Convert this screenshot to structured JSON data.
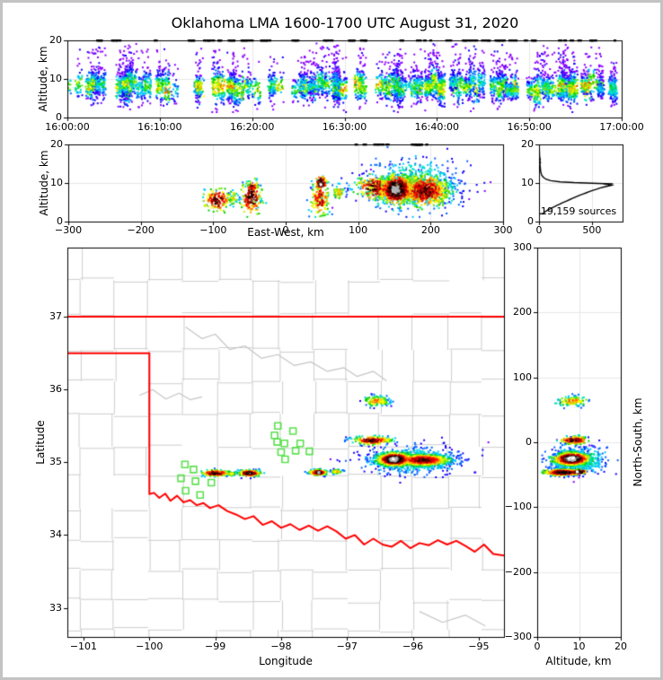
{
  "title": "Oklahoma LMA 1600-1700 UTC August 31, 2020",
  "colors": {
    "background": "#ffffff",
    "frame": "#c3c3c3",
    "spine": "#000000",
    "grid": "#e8e8e8",
    "county": "#cecece",
    "river": "#c6c6c6",
    "state_border": "#ff0000",
    "station": "#5ce14f",
    "histogram_line": "#000000",
    "density_palette": [
      "#8b00ff",
      "#1400ff",
      "#0064ff",
      "#00c8ff",
      "#00e6b4",
      "#00d200",
      "#64e600",
      "#c8f000",
      "#ffff00",
      "#ffb400",
      "#ff6400",
      "#ff0000",
      "#c80000",
      "#820000",
      "#3c0000",
      "#000000",
      "#646464",
      "#b4b4b4",
      "#ffffff"
    ]
  },
  "chart_data": {
    "type": "scatter",
    "panels": {
      "time_height": {
        "ylabel": "Altitude, km",
        "xlim": [
          0,
          3600
        ],
        "ylim": [
          0,
          20
        ],
        "xtick_vals": [
          0,
          600,
          1200,
          1800,
          2400,
          3000,
          3600
        ],
        "xtick_labels": [
          "16:00:00",
          "16:10:00",
          "16:20:00",
          "16:30:00",
          "16:40:00",
          "16:50:00",
          "17:00:00"
        ],
        "ytick_vals": [
          0,
          10,
          20
        ],
        "ytick_labels": [
          "0",
          "10",
          "20"
        ],
        "grid": true
      },
      "ew_height": {
        "xlabel": "East-West, km",
        "ylabel": "Altitude, km",
        "xlim": [
          -300,
          300
        ],
        "ylim": [
          0,
          20
        ],
        "xtick_vals": [
          -300,
          -200,
          -100,
          0,
          100,
          200,
          300
        ],
        "xtick_labels": [
          "−300",
          "−200",
          "−100",
          "0",
          "100",
          "200",
          "300"
        ],
        "ytick_vals": [
          0,
          10,
          20
        ],
        "ytick_labels": [
          "0",
          "10",
          "20"
        ],
        "grid": true
      },
      "histogram": {
        "xlim": [
          0,
          790
        ],
        "ylim": [
          0,
          20
        ],
        "xtick_vals": [
          0,
          500
        ],
        "xtick_labels": [
          "0",
          "500"
        ],
        "ytick_vals": [
          0,
          10,
          20
        ],
        "ytick_labels": [
          "0",
          "10",
          "20"
        ],
        "annotation": "19,159 sources",
        "grid": true,
        "profile_alt_count": [
          [
            20,
            2
          ],
          [
            19,
            3
          ],
          [
            18,
            4
          ],
          [
            17,
            5
          ],
          [
            16.5,
            7
          ],
          [
            16,
            12
          ],
          [
            15.7,
            6
          ],
          [
            15.3,
            14
          ],
          [
            15,
            8
          ],
          [
            14.5,
            10
          ],
          [
            14,
            12
          ],
          [
            13.5,
            13
          ],
          [
            13,
            16
          ],
          [
            12.5,
            20
          ],
          [
            12,
            26
          ],
          [
            11.5,
            40
          ],
          [
            11,
            65
          ],
          [
            10.6,
            110
          ],
          [
            10.3,
            200
          ],
          [
            10.1,
            330
          ],
          [
            9.9,
            560
          ],
          [
            9.8,
            700
          ],
          [
            9.6,
            640
          ],
          [
            9.4,
            685
          ],
          [
            9.2,
            655
          ],
          [
            9,
            620
          ],
          [
            8.7,
            575
          ],
          [
            8.4,
            545
          ],
          [
            8.1,
            510
          ],
          [
            7.8,
            480
          ],
          [
            7.5,
            450
          ],
          [
            7.2,
            420
          ],
          [
            6.9,
            390
          ],
          [
            6.6,
            365
          ],
          [
            6.3,
            340
          ],
          [
            6,
            315
          ],
          [
            5.7,
            290
          ],
          [
            5.4,
            265
          ],
          [
            5.1,
            240
          ],
          [
            4.8,
            215
          ],
          [
            4.5,
            195
          ],
          [
            4.2,
            170
          ],
          [
            3.9,
            150
          ],
          [
            3.6,
            125
          ],
          [
            3.3,
            105
          ],
          [
            3,
            85
          ],
          [
            2.7,
            65
          ],
          [
            2.4,
            50
          ],
          [
            2.1,
            40
          ],
          [
            2,
            10
          ],
          [
            1.9,
            2
          ]
        ]
      },
      "map": {
        "xlabel": "Longitude",
        "ylabel": "Latitude",
        "xlim": [
          -101.245,
          -94.617
        ],
        "ylim": [
          32.6,
          37.95
        ],
        "xtick_vals": [
          -101,
          -100,
          -99,
          -98,
          -97,
          -96,
          -95
        ],
        "xtick_labels": [
          "−101",
          "−100",
          "−99",
          "−98",
          "−97",
          "−96",
          "−95"
        ],
        "ytick_vals": [
          33,
          34,
          35,
          36,
          37
        ],
        "ytick_labels": [
          "33",
          "34",
          "35",
          "36",
          "37"
        ],
        "grid": false
      },
      "ns_height": {
        "xlabel": "Altitude, km",
        "ylabel": "North-South, km",
        "xlim": [
          0,
          20
        ],
        "ylim": [
          -300,
          300
        ],
        "xtick_vals": [
          0,
          10,
          20
        ],
        "xtick_labels": [
          "0",
          "10",
          "20"
        ],
        "ytick_vals": [
          300,
          200,
          100,
          0,
          -100,
          -200,
          -300
        ],
        "ytick_labels": [
          "300",
          "200",
          "100",
          "0",
          "−100",
          "−200",
          "−300"
        ],
        "grid": true
      }
    },
    "origin": {
      "lon": -97.96,
      "lat": 35.27,
      "km_per_deg_lon": 91,
      "km_per_deg_lat": 111
    },
    "clusters": [
      {
        "name": "main-storm-core-west",
        "lon": -96.28,
        "lat": 35.04,
        "slon": 0.13,
        "slat": 0.045,
        "n": 900,
        "alt_mu": 8.3,
        "alt_sigma": 1.6,
        "peak": 1.0
      },
      {
        "name": "main-storm-core-east",
        "lon": -95.85,
        "lat": 35.03,
        "slon": 0.2,
        "slat": 0.04,
        "n": 800,
        "alt_mu": 8.0,
        "alt_sigma": 1.8,
        "peak": 0.82
      },
      {
        "name": "main-storm-halo",
        "lon": -96.05,
        "lat": 35.03,
        "slon": 0.38,
        "slat": 0.1,
        "n": 550,
        "alt_mu": 9.5,
        "alt_sigma": 3.2,
        "peak": 0.3
      },
      {
        "name": "north-cell",
        "lon": -96.55,
        "lat": 35.84,
        "slon": 0.1,
        "slat": 0.035,
        "n": 130,
        "alt_mu": 8.5,
        "alt_sigma": 1.6,
        "peak": 0.62
      },
      {
        "name": "mid-cell",
        "lon": -96.62,
        "lat": 35.3,
        "slon": 0.15,
        "slat": 0.03,
        "n": 200,
        "alt_mu": 8.8,
        "alt_sigma": 1.4,
        "peak": 0.85
      },
      {
        "name": "west-line-1",
        "lon": -99.0,
        "lat": 34.85,
        "slon": 0.11,
        "slat": 0.022,
        "n": 170,
        "alt_mu": 5.6,
        "alt_sigma": 1.2,
        "peak": 0.88
      },
      {
        "name": "west-line-1b",
        "lon": -98.76,
        "lat": 34.84,
        "slon": 0.04,
        "slat": 0.015,
        "n": 40,
        "alt_mu": 6.2,
        "alt_sigma": 0.9,
        "peak": 0.5
      },
      {
        "name": "west-line-2",
        "lon": -98.48,
        "lat": 34.85,
        "slon": 0.09,
        "slat": 0.022,
        "n": 190,
        "alt_mu": 6.3,
        "alt_sigma": 1.9,
        "peak": 0.9
      },
      {
        "name": "west-line-2-top",
        "lon": -98.47,
        "lat": 34.85,
        "slon": 0.05,
        "slat": 0.015,
        "n": 50,
        "alt_mu": 9.2,
        "alt_sigma": 0.6,
        "peak": 0.8
      },
      {
        "name": "west-line-3",
        "lon": -97.44,
        "lat": 34.86,
        "slon": 0.075,
        "slat": 0.02,
        "n": 150,
        "alt_mu": 5.8,
        "alt_sigma": 1.9,
        "peak": 0.8
      },
      {
        "name": "west-line-3-top",
        "lon": -97.43,
        "lat": 34.86,
        "slon": 0.05,
        "slat": 0.018,
        "n": 90,
        "alt_mu": 10.0,
        "alt_sigma": 0.9,
        "peak": 1.0
      },
      {
        "name": "west-line-4",
        "lon": -97.16,
        "lat": 34.87,
        "slon": 0.05,
        "slat": 0.015,
        "n": 55,
        "alt_mu": 7.6,
        "alt_sigma": 0.9,
        "peak": 0.55
      }
    ],
    "stations": [
      [
        -99.46,
        34.97
      ],
      [
        -99.33,
        34.9
      ],
      [
        -99.52,
        34.78
      ],
      [
        -99.3,
        34.74
      ],
      [
        -99.45,
        34.61
      ],
      [
        -99.23,
        34.55
      ],
      [
        -99.06,
        34.72
      ],
      [
        -98.05,
        35.5
      ],
      [
        -97.82,
        35.43
      ],
      [
        -98.1,
        35.37
      ],
      [
        -98.06,
        35.28
      ],
      [
        -97.95,
        35.26
      ],
      [
        -97.71,
        35.26
      ],
      [
        -97.78,
        35.16
      ],
      [
        -98.0,
        35.14
      ],
      [
        -97.57,
        35.15
      ],
      [
        -97.94,
        35.04
      ]
    ],
    "state_boundary": {
      "north": [
        [
          -101.245,
          37
        ],
        [
          -94.617,
          37
        ]
      ],
      "main": [
        [
          -101.245,
          36.5
        ],
        [
          -100,
          36.5
        ],
        [
          -100,
          34.563
        ],
        [
          -99.93,
          34.58
        ],
        [
          -99.85,
          34.51
        ],
        [
          -99.76,
          34.57
        ],
        [
          -99.68,
          34.47
        ],
        [
          -99.58,
          34.54
        ],
        [
          -99.48,
          34.45
        ],
        [
          -99.38,
          34.48
        ],
        [
          -99.28,
          34.41
        ],
        [
          -99.18,
          34.44
        ],
        [
          -99.08,
          34.37
        ],
        [
          -98.95,
          34.41
        ],
        [
          -98.82,
          34.33
        ],
        [
          -98.68,
          34.28
        ],
        [
          -98.55,
          34.22
        ],
        [
          -98.42,
          34.26
        ],
        [
          -98.28,
          34.14
        ],
        [
          -98.14,
          34.19
        ],
        [
          -98.0,
          34.1
        ],
        [
          -97.86,
          34.15
        ],
        [
          -97.72,
          34.07
        ],
        [
          -97.58,
          34.13
        ],
        [
          -97.44,
          34.06
        ],
        [
          -97.3,
          34.12
        ],
        [
          -97.16,
          34.05
        ],
        [
          -97.02,
          33.95
        ],
        [
          -96.88,
          34.0
        ],
        [
          -96.74,
          33.87
        ],
        [
          -96.6,
          33.95
        ],
        [
          -96.46,
          33.87
        ],
        [
          -96.32,
          33.84
        ],
        [
          -96.18,
          33.92
        ],
        [
          -96.04,
          33.82
        ],
        [
          -95.9,
          33.89
        ],
        [
          -95.76,
          33.86
        ],
        [
          -95.62,
          33.93
        ],
        [
          -95.48,
          33.87
        ],
        [
          -95.34,
          33.92
        ],
        [
          -95.2,
          33.85
        ],
        [
          -95.06,
          33.77
        ],
        [
          -94.92,
          33.87
        ],
        [
          -94.78,
          33.74
        ],
        [
          -94.617,
          33.72
        ]
      ]
    },
    "rivers": [
      [
        [
          -99.45,
          36.86
        ],
        [
          -99.2,
          36.7
        ],
        [
          -99.0,
          36.76
        ],
        [
          -98.78,
          36.55
        ],
        [
          -98.55,
          36.6
        ],
        [
          -98.3,
          36.43
        ],
        [
          -98.05,
          36.48
        ],
        [
          -97.8,
          36.33
        ],
        [
          -97.55,
          36.38
        ],
        [
          -97.3,
          36.25
        ]
      ],
      [
        [
          -100.15,
          35.92
        ],
        [
          -99.95,
          36.0
        ],
        [
          -99.75,
          35.87
        ],
        [
          -99.55,
          35.95
        ],
        [
          -99.38,
          35.86
        ],
        [
          -99.2,
          35.9
        ]
      ],
      [
        [
          -97.3,
          36.25
        ],
        [
          -97.05,
          36.3
        ],
        [
          -96.85,
          36.18
        ],
        [
          -96.6,
          36.25
        ],
        [
          -96.4,
          36.12
        ]
      ],
      [
        [
          -95.9,
          32.95
        ],
        [
          -95.55,
          32.8
        ],
        [
          -95.2,
          32.9
        ],
        [
          -94.9,
          32.75
        ]
      ]
    ],
    "county_grid": {
      "seed": 11,
      "lon_step": 0.5,
      "lat_step": 0.44,
      "jitter": 0.07,
      "skip": 0.16
    },
    "time_streaks": {
      "seed": 42,
      "n": 115,
      "pts_min": 22,
      "pts_max": 95
    },
    "top_edge_marks": {
      "seed": 5,
      "n": 58
    }
  }
}
